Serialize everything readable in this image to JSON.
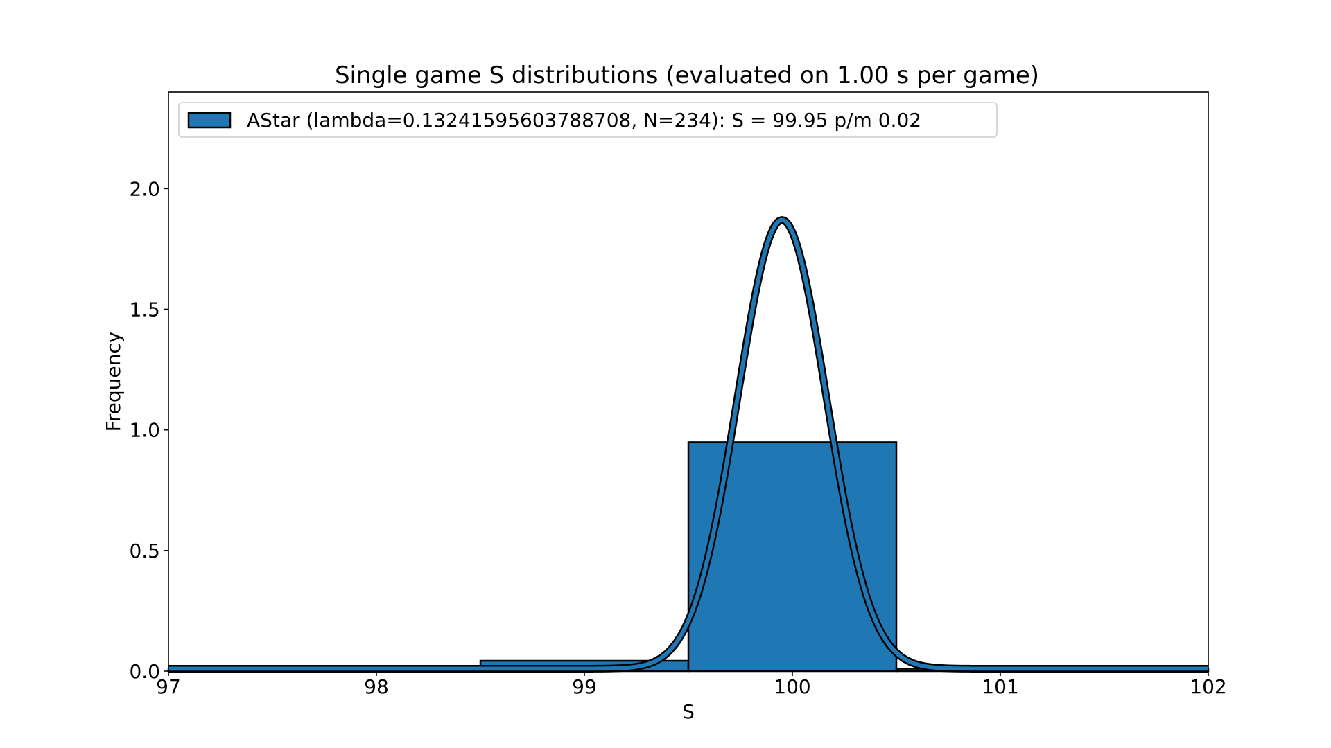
{
  "chart_data": {
    "type": "bar",
    "title": "Single game S distributions (evaluated on 1.00 s per game)",
    "xlabel": "S",
    "ylabel": "Frequency",
    "xlim": [
      97,
      102
    ],
    "ylim": [
      0,
      2.4
    ],
    "x_ticks": [
      97,
      98,
      99,
      100,
      101,
      102
    ],
    "x_tick_labels": [
      "97",
      "98",
      "99",
      "100",
      "101",
      "102"
    ],
    "y_ticks": [
      0.0,
      0.5,
      1.0,
      1.5,
      2.0
    ],
    "y_tick_labels": [
      "0.0",
      "0.5",
      "1.0",
      "1.5",
      "2.0"
    ],
    "grid": false,
    "legend_position": "top-left",
    "series": [
      {
        "name": "AStar (lambda=0.13241595603788708, N=234): S = 99.95 p/m 0.02",
        "color": "#1f77b4",
        "bins": [
          {
            "x0": 97.0,
            "x1": 98.5,
            "value": 0.01
          },
          {
            "x0": 98.5,
            "x1": 99.5,
            "value": 0.043
          },
          {
            "x0": 99.5,
            "x1": 100.5,
            "value": 0.949
          },
          {
            "x0": 100.5,
            "x1": 102.0,
            "value": 0.01
          }
        ]
      }
    ],
    "fit_curve": {
      "type": "gaussian",
      "mean": 99.95,
      "sigma": 0.213,
      "peak": 1.87,
      "baseline": 0.01,
      "color": "#1f77b4"
    }
  }
}
